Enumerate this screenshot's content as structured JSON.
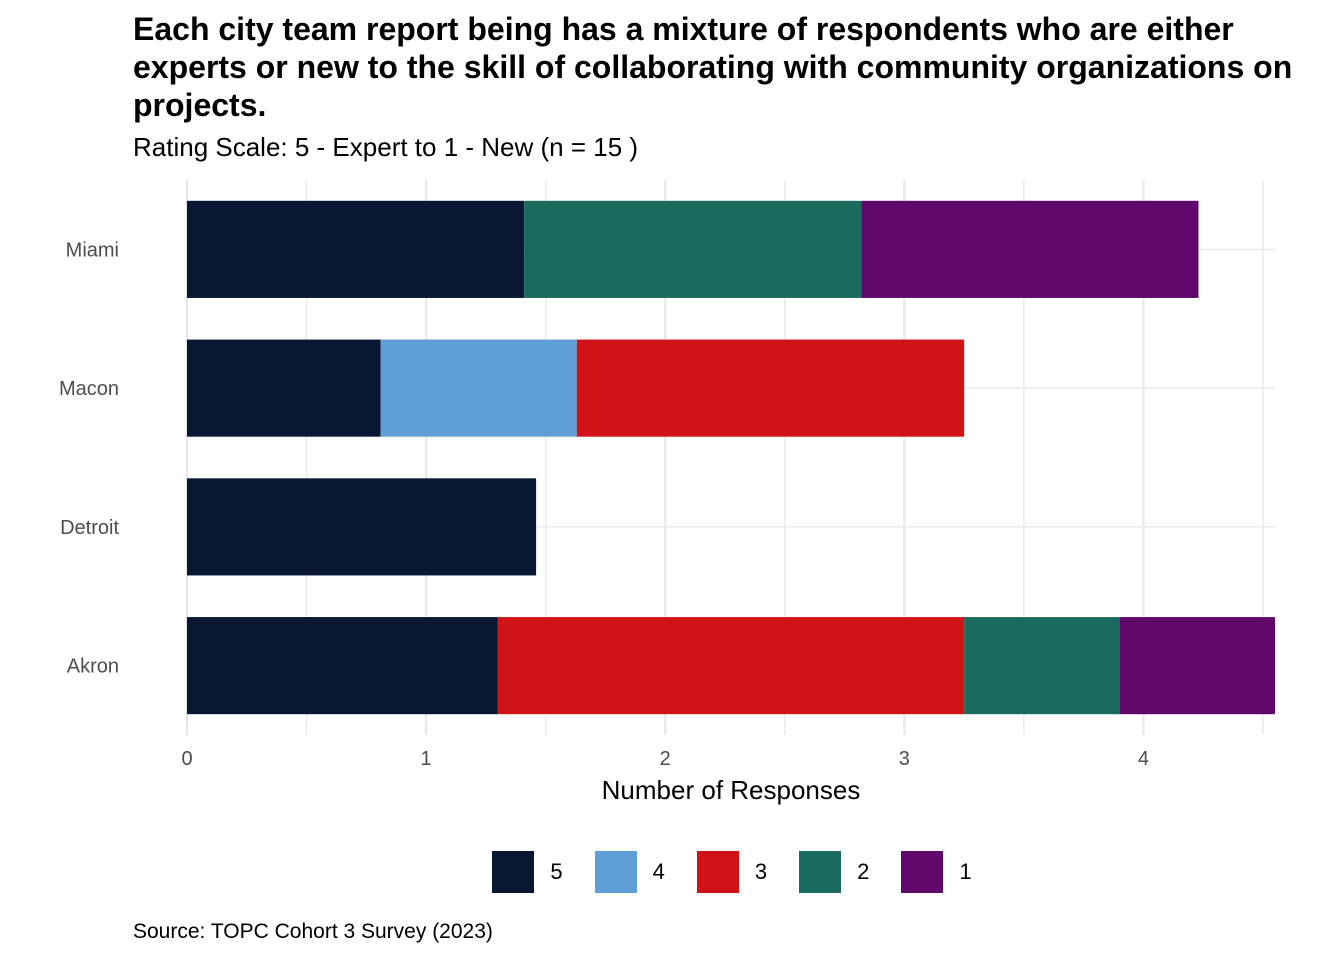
{
  "chart_data": {
    "type": "bar",
    "orientation": "horizontal",
    "stacked": true,
    "title": "Each city team report being has a mixture of respondents who are either experts or new to the skill of collaborating with community organizations on projects.",
    "subtitle": "Rating Scale: 5 - Expert to 1 - New (n = 15 )",
    "xlabel": "Number of Responses",
    "ylabel": "",
    "categories": [
      "Miami",
      "Macon",
      "Detroit",
      "Akron"
    ],
    "xlim": [
      0,
      4.55
    ],
    "xticks": [
      "0",
      "1",
      "2",
      "3",
      "4"
    ],
    "grid": true,
    "legend_position": "bottom",
    "series": [
      {
        "name": "5",
        "color": "#081833",
        "values": [
          1.41,
          0.81,
          1.46,
          1.3
        ]
      },
      {
        "name": "4",
        "color": "#5f9ed6",
        "values": [
          0,
          0.82,
          0,
          0
        ]
      },
      {
        "name": "3",
        "color": "#d01317",
        "values": [
          0,
          1.62,
          0,
          1.95
        ]
      },
      {
        "name": "2",
        "color": "#1a6b5e",
        "values": [
          1.41,
          0,
          0,
          0.65
        ]
      },
      {
        "name": "1",
        "color": "#5f076a",
        "values": [
          1.41,
          0,
          0,
          0.65
        ]
      }
    ],
    "caption": "Source: TOPC Cohort 3 Survey (2023)"
  }
}
